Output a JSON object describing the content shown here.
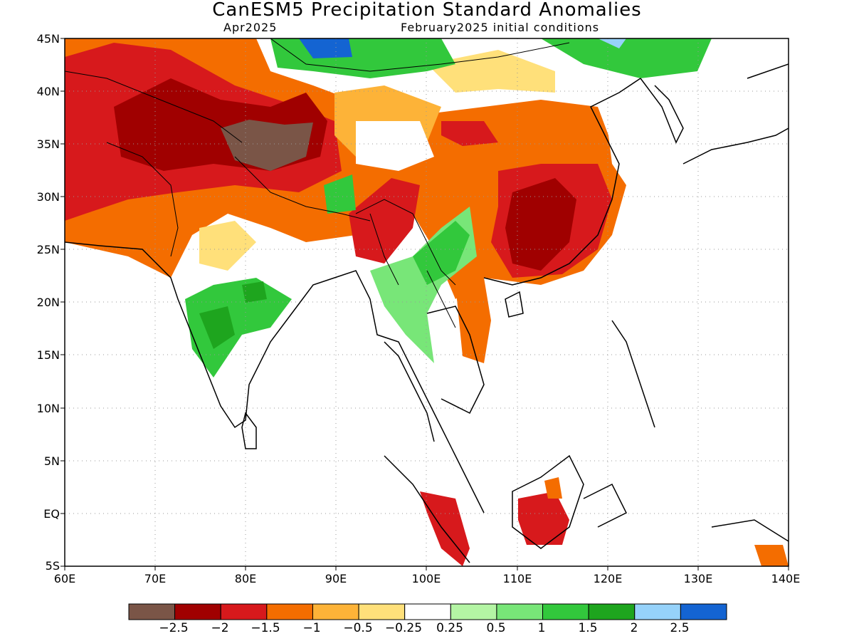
{
  "title": "CanESM5 Precipitation Standard Anomalies",
  "subtitle_left": "Apr2025",
  "subtitle_right": "February2025 initial conditions",
  "lat_labels": [
    "45N",
    "40N",
    "35N",
    "30N",
    "25N",
    "20N",
    "15N",
    "10N",
    "5N",
    "EQ",
    "5S"
  ],
  "lon_labels": [
    "60E",
    "70E",
    "80E",
    "90E",
    "100E",
    "110E",
    "120E",
    "130E",
    "140E"
  ],
  "colorbar": {
    "labels": [
      "−2.5",
      "−2",
      "−1.5",
      "−1",
      "−0.5",
      "−0.25",
      "0.25",
      "0.5",
      "1",
      "1.5",
      "2",
      "2.5"
    ],
    "colors": [
      "#7a5547",
      "#a00000",
      "#d7191c",
      "#f46d00",
      "#fdb338",
      "#ffe07a",
      "#ffffff",
      "#b4f5a4",
      "#78e678",
      "#32c83c",
      "#1ea51e",
      "#96d2fa",
      "#1464d2"
    ]
  },
  "map": {
    "projection": "latitude-longitude",
    "lon_range": [
      60,
      140
    ],
    "lat_range": [
      -5,
      45
    ],
    "grid": "dotted",
    "land_mask": true
  }
}
